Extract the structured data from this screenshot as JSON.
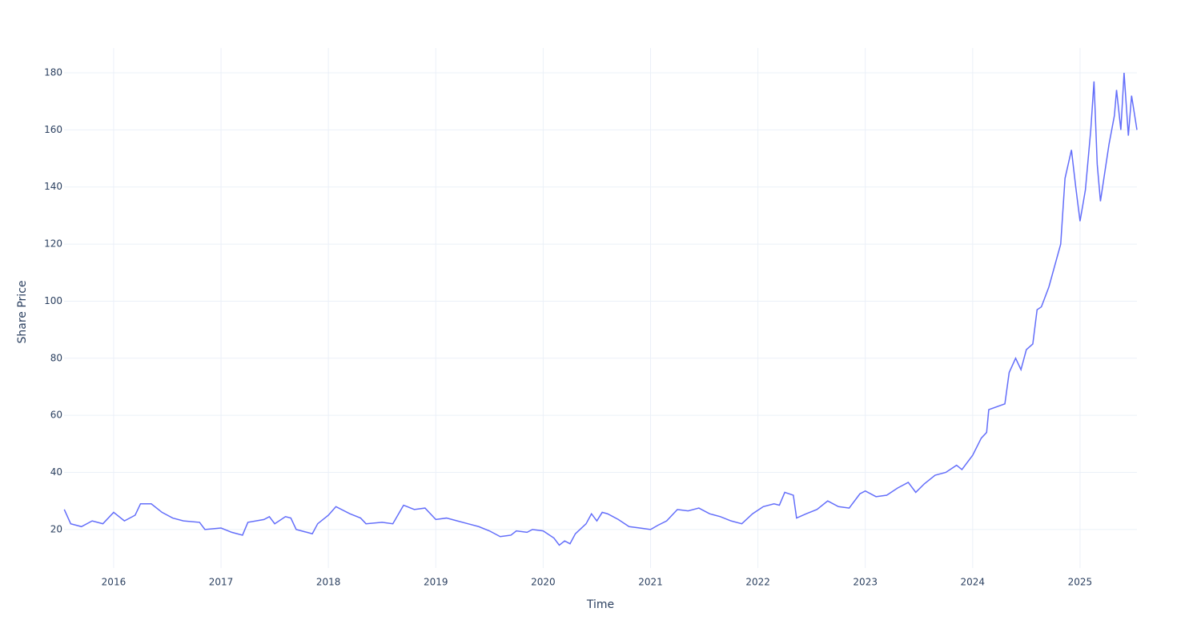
{
  "chart_data": {
    "type": "line",
    "x_label": "Time",
    "y_label": "Share Price",
    "color": "#636efa",
    "grid": true,
    "xlim": [
      2015.538,
      2025.53
    ],
    "xticks": [
      2016,
      2017,
      2018,
      2019,
      2020,
      2021,
      2022,
      2023,
      2024,
      2025
    ],
    "ylim": [
      6.5,
      188.7
    ],
    "yticks": [
      20,
      40,
      60,
      80,
      100,
      120,
      140,
      160,
      180
    ],
    "x": [
      2015.54,
      2015.6,
      2015.7,
      2015.8,
      2015.9,
      2016.0,
      2016.1,
      2016.2,
      2016.25,
      2016.35,
      2016.45,
      2016.55,
      2016.65,
      2016.8,
      2016.85,
      2017.0,
      2017.1,
      2017.2,
      2017.25,
      2017.4,
      2017.45,
      2017.5,
      2017.6,
      2017.65,
      2017.7,
      2017.8,
      2017.85,
      2017.9,
      2018.0,
      2018.07,
      2018.2,
      2018.3,
      2018.35,
      2018.5,
      2018.6,
      2018.7,
      2018.8,
      2018.9,
      2019.0,
      2019.1,
      2019.2,
      2019.3,
      2019.4,
      2019.5,
      2019.6,
      2019.7,
      2019.75,
      2019.85,
      2019.9,
      2020.0,
      2020.1,
      2020.15,
      2020.2,
      2020.25,
      2020.3,
      2020.4,
      2020.45,
      2020.5,
      2020.55,
      2020.6,
      2020.7,
      2020.8,
      2020.9,
      2021.0,
      2021.07,
      2021.15,
      2021.25,
      2021.35,
      2021.45,
      2021.55,
      2021.65,
      2021.75,
      2021.85,
      2021.95,
      2022.05,
      2022.15,
      2022.2,
      2022.25,
      2022.33,
      2022.36,
      2022.45,
      2022.55,
      2022.65,
      2022.75,
      2022.85,
      2022.95,
      2023.0,
      2023.1,
      2023.2,
      2023.3,
      2023.4,
      2023.47,
      2023.55,
      2023.65,
      2023.75,
      2023.85,
      2023.9,
      2024.0,
      2024.08,
      2024.13,
      2024.15,
      2024.3,
      2024.34,
      2024.4,
      2024.45,
      2024.5,
      2024.56,
      2024.6,
      2024.64,
      2024.71,
      2024.82,
      2024.86,
      2024.92,
      2024.96,
      2025.0,
      2025.05,
      2025.1,
      2025.13,
      2025.16,
      2025.19,
      2025.27,
      2025.32,
      2025.34,
      2025.38,
      2025.41,
      2025.45,
      2025.48,
      2025.53
    ],
    "values": [
      27,
      22,
      21,
      23,
      22,
      26,
      23,
      25,
      29,
      29,
      26,
      24,
      23,
      22.5,
      20,
      20.5,
      19,
      18,
      22.5,
      23.5,
      24.5,
      22,
      24.5,
      24,
      20,
      19,
      18.5,
      22,
      25,
      28,
      25.5,
      24,
      22,
      22.5,
      22,
      28.5,
      27,
      27.5,
      23.5,
      24,
      23,
      22,
      21,
      19.5,
      17.5,
      18,
      19.5,
      19,
      20,
      19.5,
      17,
      14.5,
      16,
      15,
      18.5,
      22,
      25.5,
      23,
      26,
      25.5,
      23.5,
      21,
      20.5,
      20,
      21.5,
      23,
      27,
      26.5,
      27.5,
      25.5,
      24.5,
      23,
      22,
      25.5,
      28,
      29,
      28.5,
      33,
      32,
      24,
      25.5,
      27,
      30,
      28,
      27.5,
      32.5,
      33.5,
      31.5,
      32,
      34.5,
      36.5,
      33,
      36,
      39,
      40,
      42.5,
      41,
      46,
      52,
      54,
      62,
      64,
      75,
      80,
      76,
      83,
      85,
      97,
      98,
      105,
      120,
      143,
      153,
      140,
      128,
      139,
      160,
      177,
      148,
      135,
      155,
      165,
      174,
      160,
      180,
      158,
      172,
      160
    ]
  }
}
